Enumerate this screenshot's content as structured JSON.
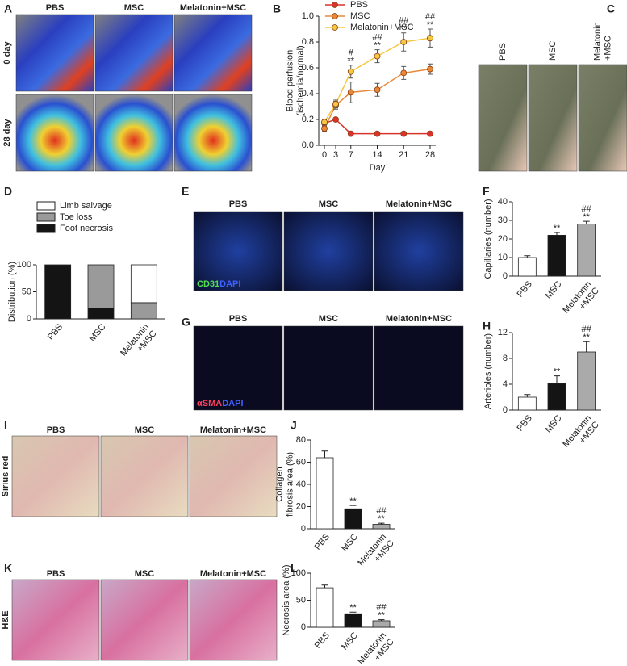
{
  "image_panels": [
    {
      "label": "A",
      "columns": [
        "PBS",
        "MSC",
        "Melatonin+MSC"
      ],
      "rows": [
        "0 day",
        "28 day"
      ]
    },
    {
      "label": "C",
      "columns": [
        "PBS",
        "MSC",
        "Melatonin\n+MSC"
      ]
    },
    {
      "label": "E",
      "columns": [
        "PBS",
        "MSC",
        "Melatonin+MSC"
      ],
      "stain": [
        "CD31",
        "DAPI"
      ]
    },
    {
      "label": "G",
      "columns": [
        "PBS",
        "MSC",
        "Melatonin+MSC"
      ],
      "stain": [
        "αSMA",
        "DAPI"
      ]
    },
    {
      "label": "I",
      "columns": [
        "PBS",
        "MSC",
        "Melatonin+MSC"
      ],
      "rows": [
        "Sirius red"
      ]
    },
    {
      "label": "K",
      "columns": [
        "PBS",
        "MSC",
        "Melatonin+MSC"
      ],
      "rows": [
        "H&E"
      ]
    }
  ],
  "chart_data": [
    {
      "type": "line",
      "panel_label": "B",
      "x_label": "Day",
      "y_label": "Blood perfusion\n(ischemia/normal)",
      "x": [
        0,
        3,
        7,
        14,
        21,
        28
      ],
      "xlim": [
        -1.5,
        29.5
      ],
      "xticks": [
        0,
        3,
        7,
        14,
        21,
        28
      ],
      "ylim": [
        0,
        1.0
      ],
      "yticks": [
        {
          "value": 0,
          "label": "0.0"
        },
        {
          "value": 0.2,
          "label": "0.2"
        },
        {
          "value": 0.4,
          "label": "0.4"
        },
        {
          "value": 0.6,
          "label": "0.6"
        },
        {
          "value": 0.8,
          "label": "0.8"
        },
        {
          "value": 1.0,
          "label": "1.0"
        }
      ],
      "series": [
        {
          "name": "PBS",
          "color": "#d9342b",
          "values": [
            0.17,
            0.2,
            0.09,
            0.09,
            0.09,
            0.09
          ]
        },
        {
          "name": "MSC",
          "color": "#e8893a",
          "values": [
            0.13,
            0.31,
            0.41,
            0.43,
            0.56,
            0.59
          ],
          "errors": [
            0.02,
            0.03,
            0.08,
            0.05,
            0.05,
            0.04
          ]
        },
        {
          "name": "Melatonin+MSC",
          "color": "#f5c842",
          "values": [
            0.18,
            0.32,
            0.57,
            0.69,
            0.8,
            0.83
          ],
          "errors": [
            0.02,
            0.03,
            0.05,
            0.05,
            0.07,
            0.07
          ],
          "annotations": [
            null,
            null,
            [
              "#",
              "**"
            ],
            [
              "##",
              "**"
            ],
            [
              "##",
              "**"
            ],
            [
              "##",
              "**"
            ]
          ]
        }
      ]
    },
    {
      "type": "bar",
      "stacked": true,
      "panel_label": "D",
      "y_label": "Distribution (%)",
      "categories": [
        "PBS",
        "MSC",
        "Melatonin\n+MSC"
      ],
      "ylim": [
        0,
        100
      ],
      "yticks": [
        0,
        50,
        100
      ],
      "series": [
        {
          "name": "Limb salvage",
          "color": "#ffffff",
          "values": [
            0,
            0,
            70
          ]
        },
        {
          "name": "Toe loss",
          "color": "#9a9a9a",
          "values": [
            0,
            80,
            30
          ]
        },
        {
          "name": "Foot necrosis",
          "color": "#141414",
          "values": [
            100,
            20,
            0
          ]
        }
      ]
    },
    {
      "type": "bar",
      "panel_label": "F",
      "y_label": "Capillaries (number)",
      "categories": [
        "PBS",
        "MSC",
        "Melatonin\n+MSC"
      ],
      "values": [
        10,
        22,
        28
      ],
      "errors": [
        1,
        1.5,
        1.5
      ],
      "colors": [
        "#ffffff",
        "#141414",
        "#aaaaaa"
      ],
      "annotations": [
        null,
        [
          "**"
        ],
        [
          "##",
          "**"
        ]
      ],
      "ylim": [
        0,
        40
      ],
      "yticks": [
        0,
        10,
        20,
        30,
        40
      ]
    },
    {
      "type": "bar",
      "panel_label": "H",
      "y_label": "Arterioles (number)",
      "categories": [
        "PBS",
        "MSC",
        "Melatonin\n+MSC"
      ],
      "values": [
        2,
        4.1,
        9.0
      ],
      "errors": [
        0.4,
        1.2,
        1.6
      ],
      "colors": [
        "#ffffff",
        "#141414",
        "#aaaaaa"
      ],
      "annotations": [
        null,
        [
          "**"
        ],
        [
          "##",
          "**"
        ]
      ],
      "ylim": [
        0,
        12
      ],
      "yticks": [
        0,
        4,
        8,
        12
      ]
    },
    {
      "type": "bar",
      "panel_label": "J",
      "y_label": "Collagen\nfibrosis area (%)",
      "categories": [
        "PBS",
        "MSC",
        "Melatonin\n+MSC"
      ],
      "values": [
        64,
        18,
        4
      ],
      "errors": [
        6,
        3,
        1
      ],
      "colors": [
        "#ffffff",
        "#141414",
        "#aaaaaa"
      ],
      "annotations": [
        null,
        [
          "**"
        ],
        [
          "##",
          "**"
        ]
      ],
      "ylim": [
        0,
        80
      ],
      "yticks": [
        0,
        20,
        40,
        60,
        80
      ]
    },
    {
      "type": "bar",
      "panel_label": "L",
      "y_label": "Necrosis area (%)",
      "categories": [
        "PBS",
        "MSC",
        "Melatonin\n+MSC"
      ],
      "values": [
        73,
        25,
        12
      ],
      "errors": [
        5,
        3,
        2
      ],
      "colors": [
        "#ffffff",
        "#141414",
        "#aaaaaa"
      ],
      "annotations": [
        null,
        [
          "**"
        ],
        [
          "##",
          "**"
        ]
      ],
      "ylim": [
        0,
        100
      ],
      "yticks": [
        0,
        50,
        100
      ]
    }
  ]
}
